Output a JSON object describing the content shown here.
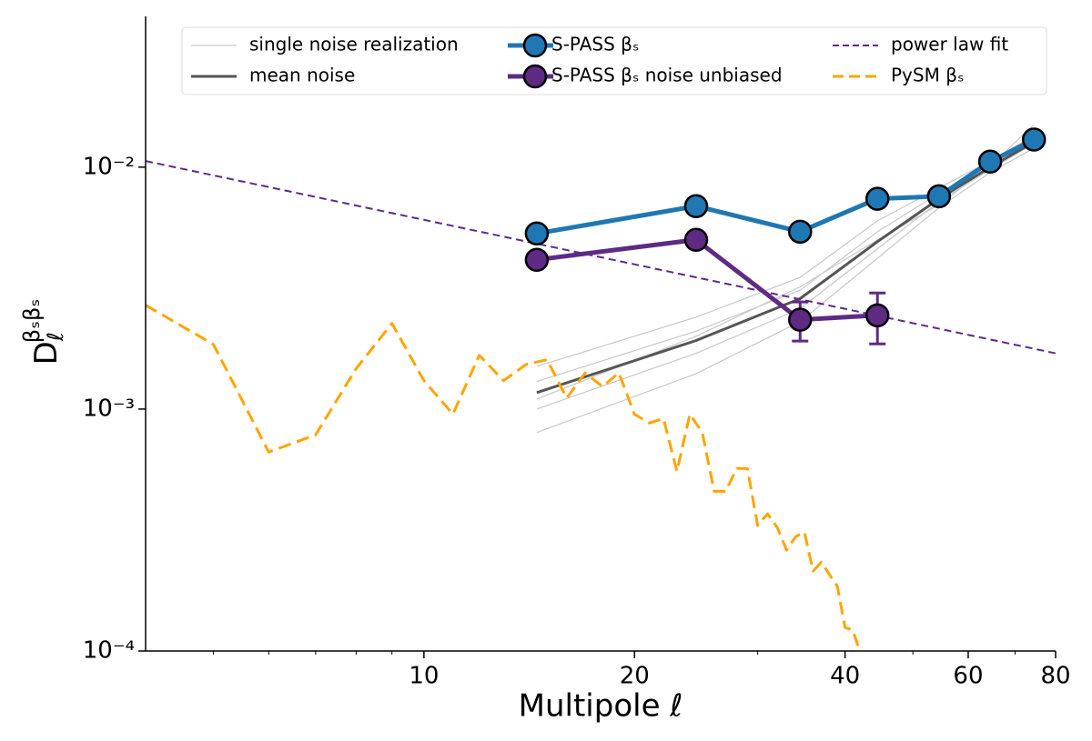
{
  "chart_data": {
    "type": "line",
    "xlabel": "Multipole ℓ",
    "ylabel": {
      "base": "D",
      "sub": "ℓ",
      "sup": "βₛβₛ"
    },
    "xscale": "log",
    "yscale": "log",
    "xlim": [
      4,
      80
    ],
    "ylim": [
      0.0001,
      0.042
    ],
    "xticks": [
      10,
      20,
      40,
      60,
      80
    ],
    "xminorticks": [
      5,
      6,
      7,
      8,
      9,
      30,
      50,
      70
    ],
    "yticks": [
      {
        "value": 0.0001,
        "label": "10⁻⁴"
      },
      {
        "value": 0.001,
        "label": "10⁻³"
      },
      {
        "value": 0.01,
        "label": "10⁻²"
      }
    ],
    "series": [
      {
        "name": "single noise realization",
        "color": "#c8c8c8",
        "linestyle": "solid",
        "x": [
          14.5,
          24.5,
          34.5,
          44.5,
          54.5,
          64.5,
          74.5
        ],
        "realizations": [
          [
            0.0008,
            0.0014,
            0.0023,
            0.0042,
            0.0068,
            0.0095,
            0.012
          ],
          [
            0.001,
            0.0017,
            0.0026,
            0.0046,
            0.0072,
            0.0098,
            0.0125
          ],
          [
            0.0013,
            0.0021,
            0.0031,
            0.0054,
            0.0078,
            0.0103,
            0.013
          ],
          [
            0.0015,
            0.0024,
            0.0035,
            0.006,
            0.0082,
            0.0106,
            0.0135
          ],
          [
            0.0011,
            0.002,
            0.0032,
            0.005,
            0.007,
            0.0101,
            0.015
          ]
        ]
      },
      {
        "name": "mean noise",
        "color": "#555555",
        "linestyle": "solid",
        "x": [
          14.5,
          24.5,
          34.5,
          44.5,
          54.5,
          64.5,
          74.5
        ],
        "values": [
          0.00117,
          0.00192,
          0.00286,
          0.00492,
          0.0074,
          0.01,
          0.0127
        ]
      },
      {
        "name": "S-PASS βₛ",
        "color": "#1f77b4",
        "linestyle": "solid",
        "marker": "o",
        "x": [
          14.5,
          24.5,
          34.5,
          44.5,
          54.5,
          64.5,
          74.5
        ],
        "values": [
          0.00532,
          0.0069,
          0.00541,
          0.0074,
          0.00758,
          0.01054,
          0.013
        ]
      },
      {
        "name": "S-PASS βₛ noise unbiased",
        "color": "#5e2a84",
        "linestyle": "solid",
        "marker": "o",
        "x": [
          14.5,
          24.5,
          34.5,
          44.5
        ],
        "values": [
          0.00414,
          0.00501,
          0.00234,
          0.00244
        ],
        "errors": [
          null,
          null,
          0.00043,
          0.00058
        ]
      },
      {
        "name": "power law fit",
        "color": "#5e2a84",
        "linestyle": "dashed",
        "x": [
          4,
          80
        ],
        "values": [
          0.0106,
          0.0017
        ]
      },
      {
        "name": "PySM βₛ",
        "color": "#ffa500",
        "linestyle": "dashed",
        "x": [
          4,
          5,
          6,
          7,
          8,
          9,
          10,
          11,
          12,
          13,
          14,
          15,
          16,
          17,
          18,
          19,
          20,
          21,
          22,
          23,
          24,
          25,
          26,
          27,
          28,
          29,
          30,
          31,
          32,
          33,
          34,
          35,
          36,
          37,
          38,
          39,
          40,
          41,
          42
        ],
        "values": [
          0.00269,
          0.00185,
          0.000664,
          0.000782,
          0.00147,
          0.00226,
          0.00131,
          0.000953,
          0.00167,
          0.00131,
          0.00153,
          0.0016,
          0.00111,
          0.00141,
          0.00124,
          0.00141,
          0.000953,
          0.000875,
          0.000914,
          0.000553,
          0.000953,
          0.000802,
          0.000457,
          0.000457,
          0.000568,
          0.000568,
          0.00033,
          0.000369,
          0.000324,
          0.000261,
          0.000297,
          0.00031,
          0.000214,
          0.000233,
          0.000207,
          0.000185,
          0.000125,
          0.000122,
          0.0001
        ]
      }
    ]
  }
}
